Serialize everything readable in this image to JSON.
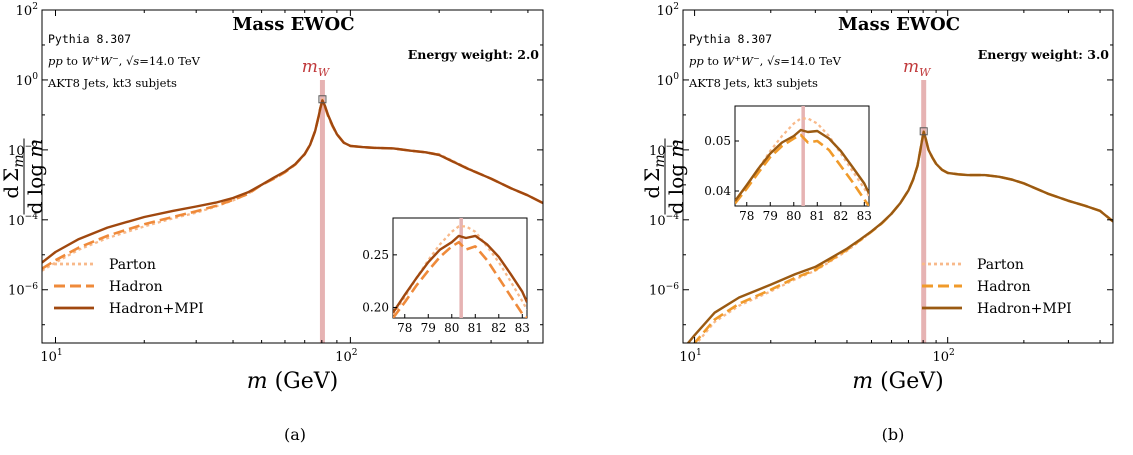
{
  "figure": {
    "panels": [
      {
        "caption": "(a)",
        "title": "Mass EWOC",
        "generator": "Pythia 8.307",
        "process": "pp to W⁺W⁻, √s=14.0 TeV",
        "jets": "AKT8 Jets, kt3 subjets",
        "weight_label": "Energy weight: 2.0",
        "mw_label": "m_W",
        "xlabel": "m (GeV)",
        "ylabel": "dΣ_m / d log m",
        "xticks": [
          "10¹",
          "10²"
        ],
        "yticks": [
          "10⁶",
          "10⁴",
          "10²",
          "10⁰",
          "10²"
        ],
        "legend": [
          "Parton",
          "Hadron",
          "Hadron+MPI"
        ],
        "inset_xticks": [
          "78",
          "79",
          "80",
          "81",
          "82",
          "83"
        ],
        "inset_yticks": [
          "0.20",
          "0.25"
        ]
      },
      {
        "caption": "(b)",
        "title": "Mass EWOC",
        "generator": "Pythia 8.307",
        "process": "pp to W⁺W⁻, √s=14.0 TeV",
        "jets": "AKT8 Jets, kt3 subjets",
        "weight_label": "Energy weight: 3.0",
        "mw_label": "m_W",
        "xlabel": "m (GeV)",
        "ylabel": "dΣ_m / d log m",
        "xticks": [
          "10¹",
          "10²"
        ],
        "yticks": [
          "10⁶",
          "10⁴",
          "10²",
          "10⁰",
          "10²"
        ],
        "legend": [
          "Parton",
          "Hadron",
          "Hadron+MPI"
        ],
        "inset_xticks": [
          "78",
          "79",
          "80",
          "81",
          "82",
          "83"
        ],
        "inset_yticks": [
          "0.04",
          "0.05"
        ]
      }
    ]
  },
  "chart_data": [
    {
      "type": "line",
      "title": "Mass EWOC",
      "xscale": "log",
      "yscale": "log",
      "xlim": [
        9,
        450
      ],
      "ylim": [
        3e-08,
        100
      ],
      "xlabel": "m (GeV)",
      "ylabel": "dΣ_m / d log m",
      "legend_position": "lower-left",
      "marker_line": {
        "label": "m_W",
        "x": 80.4,
        "color": "#e6b3b3"
      },
      "colors": {
        "Parton": "#f8b98a",
        "Hadron": "#ef8a3a",
        "Hadron+MPI": "#a0480f"
      },
      "x": [
        9,
        10,
        12,
        15,
        20,
        25,
        30,
        35,
        40,
        45,
        50,
        55,
        60,
        65,
        70,
        73,
        76,
        78,
        79,
        80.4,
        82,
        84,
        87,
        90,
        95,
        100,
        110,
        120,
        140,
        160,
        180,
        200,
        250,
        300,
        350,
        400,
        450
      ],
      "series": [
        {
          "name": "Parton",
          "values": [
            3.5e-06,
            6e-06,
            1.4e-05,
            3e-05,
            6.5e-05,
            0.00011,
            0.00016,
            0.00024,
            0.00036,
            0.00055,
            0.001,
            0.0015,
            0.0023,
            0.0038,
            0.0075,
            0.014,
            0.035,
            0.09,
            0.15,
            0.28,
            0.18,
            0.1,
            0.05,
            0.028,
            0.016,
            0.013,
            0.012,
            0.0115,
            0.011,
            0.0095,
            0.0085,
            0.0075,
            0.003,
            0.0015,
            0.0008,
            0.0005,
            0.0003
          ]
        },
        {
          "name": "Hadron",
          "values": [
            4e-06,
            7e-06,
            1.6e-05,
            3.5e-05,
            7.5e-05,
            0.00012,
            0.000175,
            0.00025,
            0.00037,
            0.00055,
            0.001,
            0.0015,
            0.0023,
            0.0038,
            0.0075,
            0.014,
            0.035,
            0.09,
            0.15,
            0.25,
            0.17,
            0.095,
            0.048,
            0.028,
            0.016,
            0.013,
            0.012,
            0.0115,
            0.011,
            0.0095,
            0.0085,
            0.0072,
            0.0029,
            0.0015,
            0.0008,
            0.0005,
            0.0003
          ]
        },
        {
          "name": "Hadron+MPI",
          "values": [
            6e-06,
            1.2e-05,
            2.8e-05,
            6e-05,
            0.00012,
            0.00018,
            0.00024,
            0.00031,
            0.00042,
            0.00061,
            0.001,
            0.0016,
            0.0024,
            0.0039,
            0.0076,
            0.014,
            0.035,
            0.09,
            0.15,
            0.26,
            0.18,
            0.1,
            0.05,
            0.028,
            0.016,
            0.013,
            0.012,
            0.0115,
            0.011,
            0.0095,
            0.0085,
            0.0072,
            0.0029,
            0.0015,
            0.0008,
            0.0005,
            0.0003
          ]
        }
      ],
      "inset": {
        "xlim": [
          77.5,
          83.2
        ],
        "ylim": [
          0.19,
          0.285
        ],
        "x": [
          77.5,
          78,
          78.5,
          79,
          79.5,
          80,
          80.3,
          80.6,
          81,
          81.5,
          82,
          82.5,
          83,
          83.2
        ],
        "series": [
          {
            "name": "Parton",
            "values": [
              0.193,
              0.21,
              0.228,
              0.245,
              0.26,
              0.272,
              0.277,
              0.277,
              0.272,
              0.258,
              0.243,
              0.225,
              0.206,
              0.198
            ]
          },
          {
            "name": "Hadron",
            "values": [
              0.19,
              0.205,
              0.221,
              0.235,
              0.248,
              0.258,
              0.262,
              0.255,
              0.258,
              0.245,
              0.228,
              0.211,
              0.194,
              0.19
            ]
          },
          {
            "name": "Hadron+MPI",
            "values": [
              0.195,
              0.212,
              0.228,
              0.243,
              0.255,
              0.262,
              0.268,
              0.266,
              0.268,
              0.26,
              0.248,
              0.232,
              0.215,
              0.205
            ]
          }
        ]
      }
    },
    {
      "type": "line",
      "title": "Mass EWOC",
      "xscale": "log",
      "yscale": "log",
      "xlim": [
        9,
        450
      ],
      "ylim": [
        3e-08,
        100
      ],
      "xlabel": "m (GeV)",
      "ylabel": "dΣ_m / d log m",
      "legend_position": "lower-right",
      "marker_line": {
        "label": "m_W",
        "x": 80.4,
        "color": "#e6b3b3"
      },
      "colors": {
        "Parton": "#f8b98a",
        "Hadron": "#f09a2a",
        "Hadron+MPI": "#9a5a12"
      },
      "x": [
        9,
        10,
        12,
        15,
        20,
        25,
        30,
        35,
        40,
        45,
        50,
        55,
        60,
        65,
        70,
        73,
        76,
        78,
        79,
        80.4,
        82,
        84,
        87,
        90,
        95,
        100,
        110,
        120,
        140,
        160,
        180,
        200,
        250,
        300,
        350,
        400,
        450
      ],
      "series": [
        {
          "name": "Parton",
          "values": [
            1e-08,
            2.5e-08,
            1.2e-07,
            3.5e-07,
            9e-07,
            2e-06,
            3.5e-06,
            7e-06,
            1.3e-05,
            2.5e-05,
            4.5e-05,
            8e-05,
            0.00015,
            0.0003,
            0.0007,
            0.0014,
            0.0035,
            0.01,
            0.017,
            0.034,
            0.02,
            0.01,
            0.006,
            0.004,
            0.0027,
            0.0022,
            0.002,
            0.0019,
            0.0019,
            0.0017,
            0.0014,
            0.0011,
            0.00055,
            0.00035,
            0.00025,
            0.00018,
            9e-05
          ]
        },
        {
          "name": "Hadron",
          "values": [
            1.2e-08,
            3e-08,
            1.4e-07,
            4e-07,
            1e-06,
            2.2e-06,
            3.7e-06,
            7.5e-06,
            1.4e-05,
            2.6e-05,
            4.6e-05,
            8e-05,
            0.00015,
            0.0003,
            0.0007,
            0.0014,
            0.0035,
            0.01,
            0.017,
            0.031,
            0.019,
            0.01,
            0.006,
            0.004,
            0.0027,
            0.0022,
            0.002,
            0.0019,
            0.0019,
            0.0017,
            0.0014,
            0.0011,
            0.00055,
            0.00035,
            0.00025,
            0.00018,
            9e-05
          ]
        },
        {
          "name": "Hadron+MPI",
          "values": [
            2e-08,
            5e-08,
            2.2e-07,
            6e-07,
            1.4e-06,
            2.8e-06,
            4.5e-06,
            8.5e-06,
            1.5e-05,
            2.7e-05,
            4.7e-05,
            8.2e-05,
            0.00015,
            0.0003,
            0.0007,
            0.0014,
            0.0035,
            0.01,
            0.017,
            0.033,
            0.02,
            0.01,
            0.006,
            0.004,
            0.0027,
            0.0022,
            0.002,
            0.0019,
            0.0019,
            0.0017,
            0.0014,
            0.0011,
            0.00055,
            0.00035,
            0.00025,
            0.00018,
            9e-05
          ]
        }
      ],
      "inset": {
        "xlim": [
          77.5,
          83.2
        ],
        "ylim": [
          0.037,
          0.057
        ],
        "x": [
          77.5,
          78,
          78.5,
          79,
          79.5,
          80,
          80.3,
          80.6,
          81,
          81.5,
          82,
          82.5,
          83,
          83.2
        ],
        "series": [
          {
            "name": "Parton",
            "values": [
              0.038,
              0.041,
              0.0445,
              0.048,
              0.051,
              0.0535,
              0.0545,
              0.0545,
              0.0535,
              0.051,
              0.0475,
              0.044,
              0.0405,
              0.039
            ]
          },
          {
            "name": "Hadron",
            "values": [
              0.0375,
              0.0405,
              0.0437,
              0.0468,
              0.049,
              0.0505,
              0.0512,
              0.0497,
              0.05,
              0.0482,
              0.045,
              0.0418,
              0.0383,
              0.037
            ]
          },
          {
            "name": "Hadron+MPI",
            "values": [
              0.038,
              0.0412,
              0.0445,
              0.0475,
              0.0497,
              0.051,
              0.0522,
              0.0518,
              0.052,
              0.0505,
              0.048,
              0.0448,
              0.0415,
              0.0395
            ]
          }
        ]
      }
    }
  ]
}
